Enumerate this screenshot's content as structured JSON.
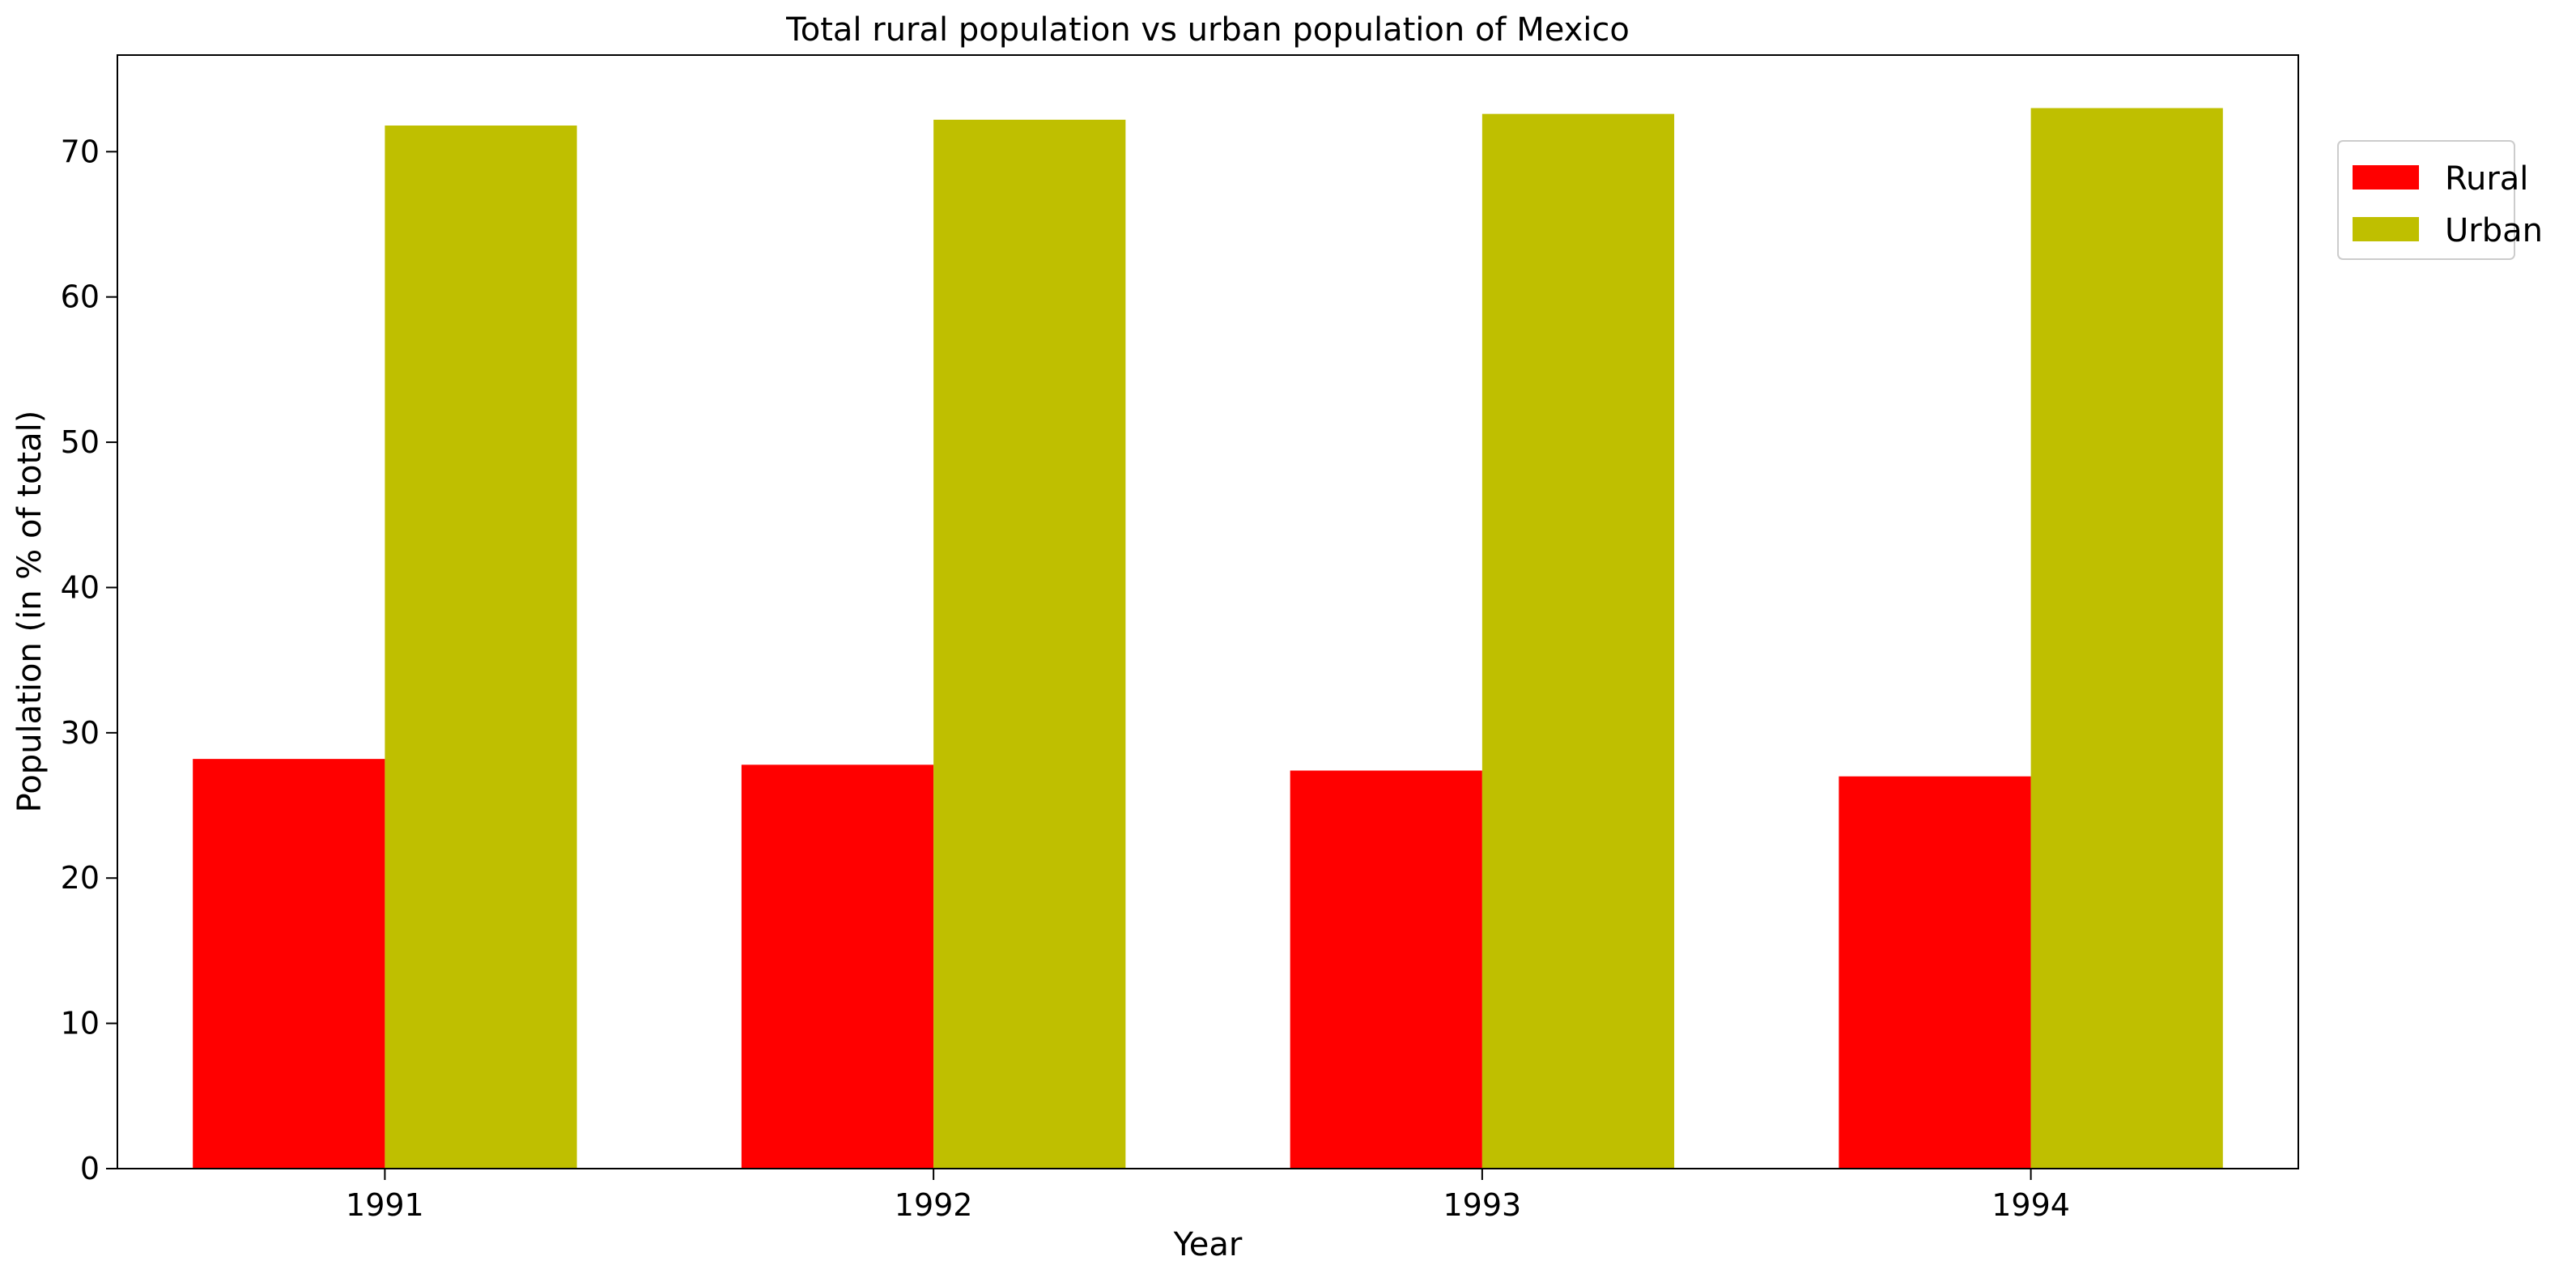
{
  "chart_data": {
    "type": "bar",
    "title": "Total rural population vs urban population of Mexico",
    "xlabel": "Year",
    "ylabel": "Population (in % of total)",
    "categories": [
      "1991",
      "1992",
      "1993",
      "1994"
    ],
    "series": [
      {
        "name": "Rural",
        "color": "#ff0000",
        "values": [
          28.2,
          27.8,
          27.4,
          27.0
        ]
      },
      {
        "name": "Urban",
        "color": "#bfbf00",
        "values": [
          71.8,
          72.2,
          72.6,
          73.0
        ]
      }
    ],
    "ylim": [
      0,
      76.65
    ],
    "yticks": [
      0,
      10,
      20,
      30,
      40,
      50,
      60,
      70
    ],
    "grid": false,
    "legend_position": "upper right, outside plot area"
  }
}
